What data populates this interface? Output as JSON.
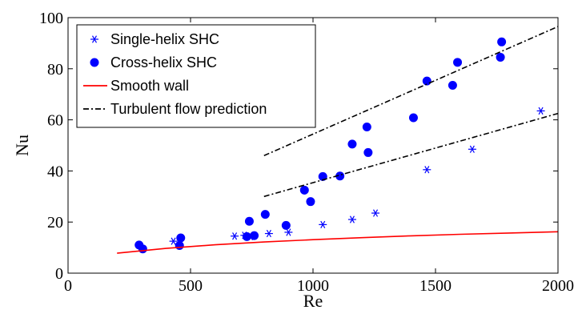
{
  "chart_data": {
    "type": "scatter",
    "xlabel": "Re",
    "ylabel": "Nu",
    "xlim": [
      0,
      2000
    ],
    "ylim": [
      0,
      100
    ],
    "xticks": [
      0,
      500,
      1000,
      1500,
      2000
    ],
    "yticks": [
      0,
      20,
      40,
      60,
      80,
      100
    ],
    "grid": false,
    "legend_position": "top-left",
    "series": [
      {
        "name": "Single-helix SHC",
        "marker": "asterisk",
        "color": "#0000ff",
        "points": [
          [
            430,
            12.5
          ],
          [
            680,
            14.5
          ],
          [
            720,
            14.8
          ],
          [
            745,
            14.3
          ],
          [
            820,
            15.5
          ],
          [
            900,
            16.0
          ],
          [
            1040,
            19.0
          ],
          [
            1160,
            21.0
          ],
          [
            1255,
            23.5
          ],
          [
            1465,
            40.5
          ],
          [
            1650,
            48.5
          ],
          [
            1930,
            63.5
          ]
        ]
      },
      {
        "name": "Cross-helix SHC",
        "marker": "circle",
        "color": "#0000ff",
        "points": [
          [
            290,
            11.0
          ],
          [
            305,
            9.5
          ],
          [
            455,
            10.8
          ],
          [
            460,
            13.8
          ],
          [
            730,
            14.3
          ],
          [
            740,
            20.3
          ],
          [
            760,
            14.7
          ],
          [
            805,
            23.0
          ],
          [
            890,
            18.7
          ],
          [
            965,
            32.5
          ],
          [
            990,
            28.0
          ],
          [
            1040,
            37.8
          ],
          [
            1110,
            38.0
          ],
          [
            1160,
            50.5
          ],
          [
            1220,
            57.2
          ],
          [
            1225,
            47.2
          ],
          [
            1410,
            60.8
          ],
          [
            1465,
            75.2
          ],
          [
            1570,
            73.5
          ],
          [
            1590,
            82.5
          ],
          [
            1765,
            84.5
          ],
          [
            1770,
            90.5
          ]
        ]
      },
      {
        "name": "Smooth wall",
        "style": "solid-line",
        "color": "#ff0000",
        "points": [
          [
            200,
            7.8
          ],
          [
            400,
            9.7
          ],
          [
            600,
            11.1
          ],
          [
            800,
            12.2
          ],
          [
            1000,
            13.1
          ],
          [
            1200,
            13.9
          ],
          [
            1400,
            14.6
          ],
          [
            1600,
            15.2
          ],
          [
            1800,
            15.7
          ],
          [
            2000,
            16.2
          ]
        ]
      },
      {
        "name": "Turbulent flow prediction",
        "style": "dash-dot-line",
        "color": "#000000",
        "lines": [
          [
            [
              800,
              46.0
            ],
            [
              2000,
              96.5
            ]
          ],
          [
            [
              800,
              30.0
            ],
            [
              2000,
              62.5
            ]
          ]
        ]
      }
    ]
  }
}
